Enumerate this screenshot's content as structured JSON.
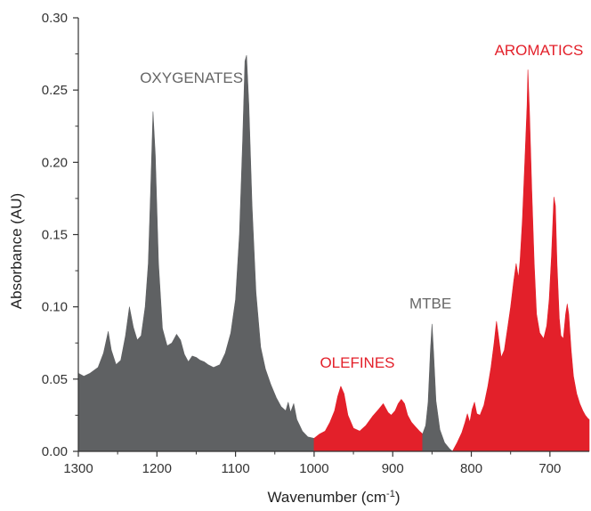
{
  "chart_data": {
    "type": "area",
    "xlabel": "Wavenumber (cm",
    "xlabel_sup": "-1",
    "xlabel_suffix": ")",
    "ylabel": "Absorbance (AU)",
    "xlim": [
      1300,
      650
    ],
    "ylim": [
      0,
      0.3
    ],
    "x_reversed": true,
    "x_ticks": [
      1300,
      1200,
      1100,
      1000,
      900,
      800,
      700
    ],
    "x_tick_labels": [
      "1300",
      "1200",
      "1100",
      "1000",
      "900",
      "800",
      "700"
    ],
    "y_ticks": [
      0,
      0.05,
      0.1,
      0.15,
      0.2,
      0.25,
      0.3
    ],
    "y_tick_labels": [
      "0.00",
      "0.05",
      "0.10",
      "0.15",
      "0.20",
      "0.25",
      "0.30"
    ],
    "grid": false,
    "colors": {
      "oxygenates": "#5f6163",
      "mtbe": "#5f6163",
      "olefines": "#e3202a",
      "aromatics": "#e3202a"
    },
    "annotations": [
      {
        "id": "oxygenates",
        "text": "OXYGENATES",
        "x": 1156,
        "y": 0.255,
        "color": "#666666"
      },
      {
        "id": "olefines",
        "text": "OLEFINES",
        "x": 945,
        "y": 0.058,
        "color": "#e3202a"
      },
      {
        "id": "mtbe",
        "text": "MTBE",
        "x": 852,
        "y": 0.099,
        "color": "#666666"
      },
      {
        "id": "aromatics",
        "text": "AROMATICS",
        "x": 714,
        "y": 0.274,
        "color": "#e3202a"
      }
    ],
    "series": [
      {
        "id": "oxygenates",
        "points": [
          [
            1300,
            0.054
          ],
          [
            1293,
            0.052
          ],
          [
            1285,
            0.054
          ],
          [
            1275,
            0.058
          ],
          [
            1268,
            0.068
          ],
          [
            1262,
            0.083
          ],
          [
            1258,
            0.07
          ],
          [
            1252,
            0.06
          ],
          [
            1246,
            0.063
          ],
          [
            1240,
            0.08
          ],
          [
            1235,
            0.1
          ],
          [
            1230,
            0.086
          ],
          [
            1225,
            0.077
          ],
          [
            1220,
            0.08
          ],
          [
            1215,
            0.1
          ],
          [
            1211,
            0.13
          ],
          [
            1208,
            0.18
          ],
          [
            1205,
            0.235
          ],
          [
            1202,
            0.205
          ],
          [
            1198,
            0.13
          ],
          [
            1193,
            0.085
          ],
          [
            1187,
            0.073
          ],
          [
            1181,
            0.075
          ],
          [
            1175,
            0.081
          ],
          [
            1170,
            0.077
          ],
          [
            1165,
            0.067
          ],
          [
            1160,
            0.062
          ],
          [
            1155,
            0.066
          ],
          [
            1150,
            0.065
          ],
          [
            1145,
            0.063
          ],
          [
            1140,
            0.062
          ],
          [
            1135,
            0.06
          ],
          [
            1128,
            0.058
          ],
          [
            1120,
            0.06
          ],
          [
            1113,
            0.068
          ],
          [
            1106,
            0.082
          ],
          [
            1100,
            0.105
          ],
          [
            1095,
            0.15
          ],
          [
            1091,
            0.215
          ],
          [
            1088,
            0.27
          ],
          [
            1086,
            0.274
          ],
          [
            1083,
            0.24
          ],
          [
            1079,
            0.17
          ],
          [
            1074,
            0.11
          ],
          [
            1068,
            0.072
          ],
          [
            1062,
            0.057
          ],
          [
            1055,
            0.046
          ],
          [
            1048,
            0.037
          ],
          [
            1042,
            0.031
          ],
          [
            1036,
            0.028
          ],
          [
            1033,
            0.034
          ],
          [
            1030,
            0.027
          ],
          [
            1026,
            0.033
          ],
          [
            1022,
            0.022
          ],
          [
            1015,
            0.014
          ],
          [
            1008,
            0.01
          ],
          [
            1000,
            0.009
          ]
        ]
      },
      {
        "id": "olefines",
        "points": [
          [
            1000,
            0.009
          ],
          [
            993,
            0.012
          ],
          [
            986,
            0.014
          ],
          [
            980,
            0.02
          ],
          [
            974,
            0.028
          ],
          [
            970,
            0.038
          ],
          [
            966,
            0.045
          ],
          [
            962,
            0.04
          ],
          [
            957,
            0.025
          ],
          [
            950,
            0.016
          ],
          [
            942,
            0.014
          ],
          [
            934,
            0.018
          ],
          [
            926,
            0.024
          ],
          [
            918,
            0.029
          ],
          [
            912,
            0.033
          ],
          [
            906,
            0.027
          ],
          [
            902,
            0.025
          ],
          [
            897,
            0.028
          ],
          [
            893,
            0.033
          ],
          [
            889,
            0.036
          ],
          [
            885,
            0.033
          ],
          [
            881,
            0.025
          ],
          [
            876,
            0.02
          ],
          [
            871,
            0.017
          ],
          [
            866,
            0.014
          ],
          [
            862,
            0.012
          ]
        ]
      },
      {
        "id": "mtbe",
        "points": [
          [
            862,
            0.012
          ],
          [
            858,
            0.018
          ],
          [
            855,
            0.034
          ],
          [
            852,
            0.07
          ],
          [
            850,
            0.088
          ],
          [
            848,
            0.068
          ],
          [
            845,
            0.035
          ],
          [
            840,
            0.015
          ],
          [
            834,
            0.006
          ],
          [
            828,
            0.002
          ],
          [
            824,
            0.0
          ]
        ]
      },
      {
        "id": "aromatics",
        "points": [
          [
            824,
            0.0
          ],
          [
            818,
            0.006
          ],
          [
            812,
            0.013
          ],
          [
            808,
            0.02
          ],
          [
            805,
            0.026
          ],
          [
            802,
            0.02
          ],
          [
            799,
            0.029
          ],
          [
            796,
            0.034
          ],
          [
            793,
            0.026
          ],
          [
            789,
            0.025
          ],
          [
            784,
            0.032
          ],
          [
            779,
            0.045
          ],
          [
            775,
            0.058
          ],
          [
            771,
            0.075
          ],
          [
            768,
            0.09
          ],
          [
            766,
            0.082
          ],
          [
            762,
            0.065
          ],
          [
            758,
            0.07
          ],
          [
            754,
            0.085
          ],
          [
            750,
            0.1
          ],
          [
            746,
            0.118
          ],
          [
            743,
            0.13
          ],
          [
            740,
            0.12
          ],
          [
            738,
            0.132
          ],
          [
            735,
            0.16
          ],
          [
            732,
            0.2
          ],
          [
            729,
            0.24
          ],
          [
            728,
            0.264
          ],
          [
            726,
            0.235
          ],
          [
            723,
            0.18
          ],
          [
            720,
            0.13
          ],
          [
            717,
            0.095
          ],
          [
            713,
            0.082
          ],
          [
            708,
            0.078
          ],
          [
            704,
            0.087
          ],
          [
            701,
            0.105
          ],
          [
            698,
            0.135
          ],
          [
            695,
            0.176
          ],
          [
            693,
            0.17
          ],
          [
            691,
            0.13
          ],
          [
            688,
            0.092
          ],
          [
            686,
            0.08
          ],
          [
            683,
            0.078
          ],
          [
            680,
            0.095
          ],
          [
            678,
            0.102
          ],
          [
            676,
            0.095
          ],
          [
            673,
            0.07
          ],
          [
            670,
            0.052
          ],
          [
            666,
            0.04
          ],
          [
            662,
            0.033
          ],
          [
            658,
            0.028
          ],
          [
            655,
            0.025
          ],
          [
            652,
            0.023
          ],
          [
            650,
            0.022
          ]
        ]
      }
    ]
  }
}
